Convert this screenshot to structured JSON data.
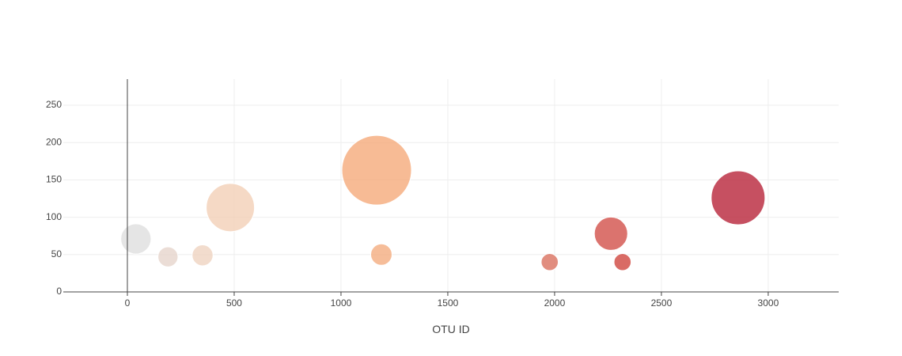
{
  "chart_data": {
    "type": "scatter",
    "subtype": "bubble",
    "title": "",
    "xlabel": "OTU ID",
    "ylabel": "",
    "xlim": [
      -300,
      3330
    ],
    "ylim": [
      0,
      285
    ],
    "x_ticks": [
      0,
      500,
      1000,
      1500,
      2000,
      2500,
      3000
    ],
    "y_ticks": [
      0,
      50,
      100,
      150,
      200,
      250
    ],
    "grid": true,
    "legend": "none",
    "points": [
      {
        "x": 40,
        "y": 71,
        "size": 71,
        "color": "#dedede"
      },
      {
        "x": 190,
        "y": 47,
        "size": 47,
        "color": "#e6d5cc"
      },
      {
        "x": 352,
        "y": 49,
        "size": 49,
        "color": "#efd3c0"
      },
      {
        "x": 482,
        "y": 113,
        "size": 113,
        "color": "#f3d0b6"
      },
      {
        "x": 1167,
        "y": 163,
        "size": 163,
        "color": "#f5aa7a"
      },
      {
        "x": 1189,
        "y": 50,
        "size": 50,
        "color": "#f4ac80"
      },
      {
        "x": 1977,
        "y": 40,
        "size": 40,
        "color": "#d9705f"
      },
      {
        "x": 2264,
        "y": 78,
        "size": 78,
        "color": "#d2504a"
      },
      {
        "x": 2318,
        "y": 40,
        "size": 40,
        "color": "#d0463f"
      },
      {
        "x": 2859,
        "y": 126,
        "size": 126,
        "color": "#b8243a"
      }
    ]
  }
}
